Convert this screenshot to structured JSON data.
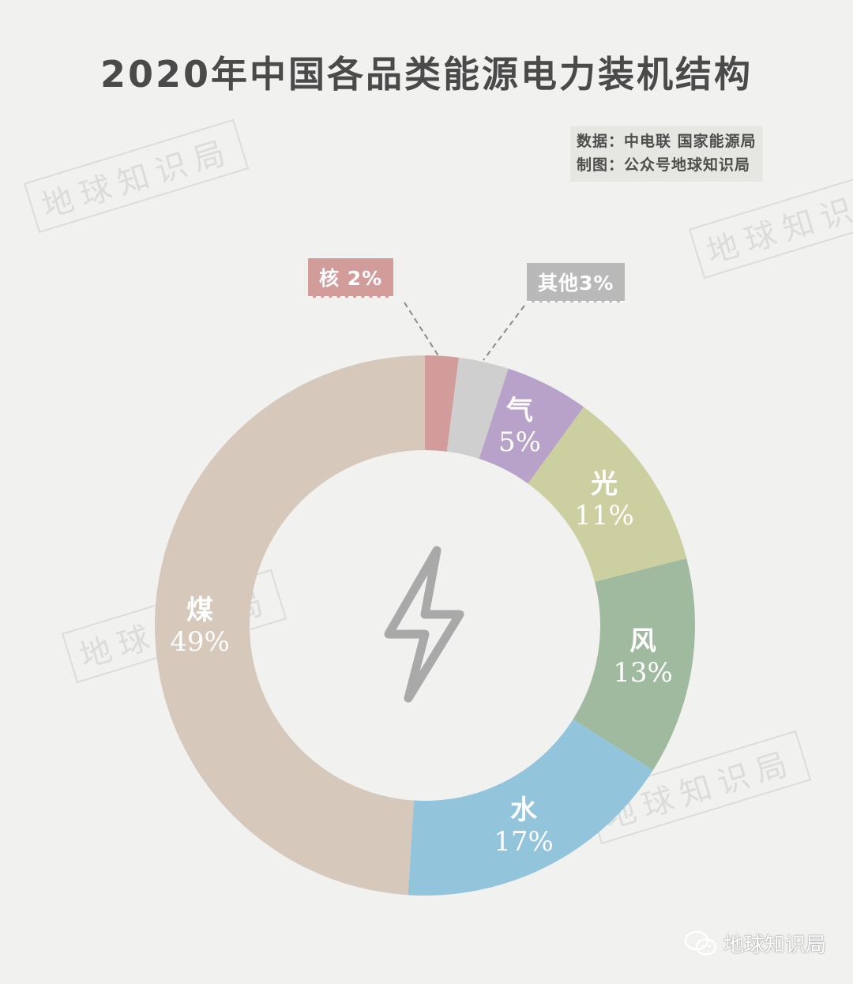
{
  "title": "2020年中国各品类能源电力装机结构",
  "source": {
    "data_line": "数据：中电联 国家能源局",
    "made_line": "制图：公众号地球知识局"
  },
  "watermark_text": "地球知识局",
  "footer": {
    "icon": "wechat-icon",
    "text": "地球知识局"
  },
  "center_icon": "lightning-icon",
  "colors": {
    "background": "#f1f1ef",
    "nuclear": "#d29c9b",
    "other": "#cfcfcf",
    "gas": "#b9a2c9",
    "solar": "#cccf9f",
    "wind": "#9fba9f",
    "hydro": "#92c4dc",
    "coal": "#d6c8bb"
  },
  "segments": {
    "nuclear": {
      "name": "核",
      "pct": "2%",
      "callout": "核 2%"
    },
    "other": {
      "name": "其他",
      "pct": "3%",
      "callout": "其他3%"
    },
    "gas": {
      "name": "气",
      "pct": "5%"
    },
    "solar": {
      "name": "光",
      "pct": "11%"
    },
    "wind": {
      "name": "风",
      "pct": "13%"
    },
    "hydro": {
      "name": "水",
      "pct": "17%"
    },
    "coal": {
      "name": "煤",
      "pct": "49%"
    }
  },
  "chart_data": {
    "type": "pie",
    "subtype": "donut",
    "title": "2020年中国各品类能源电力装机结构",
    "categories": [
      "核",
      "其他",
      "气",
      "光",
      "风",
      "水",
      "煤"
    ],
    "values": [
      2,
      3,
      5,
      11,
      13,
      17,
      49
    ],
    "unit": "%",
    "colors": [
      "#d29c9b",
      "#cfcfcf",
      "#b9a2c9",
      "#cccf9f",
      "#9fba9f",
      "#92c4dc",
      "#d6c8bb"
    ],
    "start_angle": "12 o'clock",
    "direction": "clockwise",
    "annotations": [
      "数据：中电联 国家能源局",
      "制图：公众号地球知识局"
    ],
    "legend": "none (labels on slices; 核 and 其他 via dashed callouts)"
  }
}
